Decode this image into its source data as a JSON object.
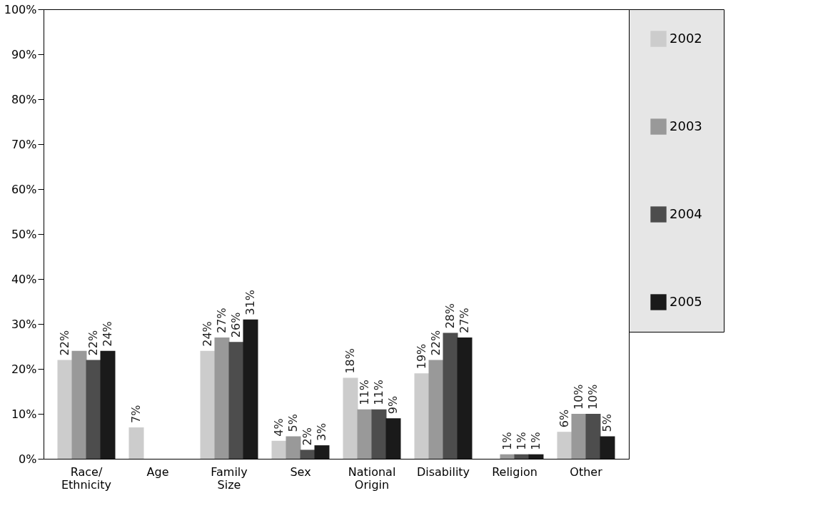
{
  "chart_data": {
    "type": "bar",
    "categories": [
      "Race/ Ethnicity",
      "Age",
      "Family Size",
      "Sex",
      "National Origin",
      "Disability",
      "Religion",
      "Other"
    ],
    "series": [
      {
        "name": "2002",
        "color": "#cccccc",
        "values": [
          22,
          7,
          24,
          4,
          18,
          19,
          0,
          6
        ],
        "value_labels": [
          "22%",
          "7%",
          "24%",
          "4%",
          "18%",
          "19%",
          null,
          "6%"
        ]
      },
      {
        "name": "2003",
        "color": "#999999",
        "values": [
          24,
          0,
          27,
          5,
          11,
          22,
          1,
          10
        ],
        "value_labels": [
          null,
          null,
          "27%",
          "5%",
          "11%",
          "22%",
          "1%",
          "10%"
        ]
      },
      {
        "name": "2004",
        "color": "#4d4d4d",
        "values": [
          22,
          0,
          26,
          2,
          11,
          28,
          1,
          10
        ],
        "value_labels": [
          "22%",
          null,
          "26%",
          "2%",
          "11%",
          "28%",
          "1%",
          "10%"
        ]
      },
      {
        "name": "2005",
        "color": "#1a1a1a",
        "values": [
          24,
          0,
          31,
          3,
          9,
          27,
          1,
          5
        ],
        "value_labels": [
          "24%",
          null,
          "31%",
          "3%",
          "9%",
          "27%",
          "1%",
          "5%"
        ]
      }
    ],
    "ylim": [
      0,
      100
    ],
    "yticks": [
      {
        "value": 0,
        "label": "0%"
      },
      {
        "value": 10,
        "label": "10%"
      },
      {
        "value": 20,
        "label": "20%"
      },
      {
        "value": 30,
        "label": "30%"
      },
      {
        "value": 40,
        "label": "40%"
      },
      {
        "value": 50,
        "label": "50%"
      },
      {
        "value": 60,
        "label": "60%"
      },
      {
        "value": 70,
        "label": "70%"
      },
      {
        "value": 80,
        "label": "80%"
      },
      {
        "value": 90,
        "label": "90%"
      },
      {
        "value": 100,
        "label": "100%"
      }
    ],
    "grid": false,
    "legend": "right"
  }
}
